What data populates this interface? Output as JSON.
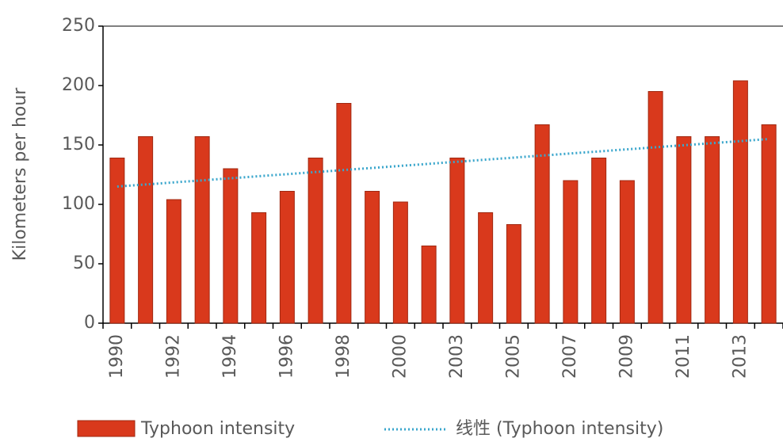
{
  "chart_data": {
    "type": "bar",
    "y_label": "Kilometers per hour",
    "categories": [
      "1990",
      null,
      "1992",
      null,
      "1994",
      null,
      "1996",
      null,
      "1998",
      null,
      "2000",
      null,
      "2003",
      null,
      "2005",
      null,
      "2007",
      null,
      "2009",
      null,
      "2011",
      null,
      "2013",
      null
    ],
    "series": [
      {
        "name": "Typhoon intensity",
        "color": "#d9391c",
        "values": [
          139,
          157,
          104,
          157,
          130,
          93,
          111,
          139,
          185,
          111,
          102,
          65,
          139,
          93,
          83,
          167,
          120,
          139,
          120,
          195,
          157,
          157,
          204,
          167
        ]
      }
    ],
    "trendline": {
      "name": "线性 (Typhoon intensity)",
      "color": "#3aa6cc",
      "values": [
        115,
        155
      ]
    },
    "ylim": [
      0,
      250
    ],
    "yticks": [
      0,
      50,
      100,
      150,
      200,
      250
    ]
  }
}
